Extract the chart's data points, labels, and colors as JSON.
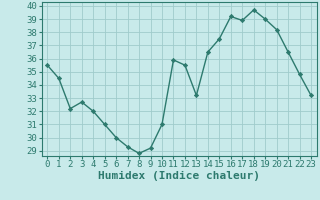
{
  "x": [
    0,
    1,
    2,
    3,
    4,
    5,
    6,
    7,
    8,
    9,
    10,
    11,
    12,
    13,
    14,
    15,
    16,
    17,
    18,
    19,
    20,
    21,
    22,
    23
  ],
  "y": [
    35.5,
    34.5,
    32.2,
    32.7,
    32.0,
    31.0,
    30.0,
    29.3,
    28.8,
    29.2,
    31.0,
    35.9,
    35.5,
    33.2,
    36.5,
    37.5,
    39.2,
    38.9,
    39.7,
    39.0,
    38.2,
    36.5,
    34.8,
    33.2
  ],
  "line_color": "#2d7a6e",
  "marker": "D",
  "marker_size": 2.2,
  "bg_color": "#c8eaea",
  "grid_color": "#a0cccc",
  "xlabel": "Humidex (Indice chaleur)",
  "ylim_min": 28.6,
  "ylim_max": 40.3,
  "xlim_min": -0.5,
  "xlim_max": 23.5,
  "yticks": [
    29,
    30,
    31,
    32,
    33,
    34,
    35,
    36,
    37,
    38,
    39,
    40
  ],
  "xticks": [
    0,
    1,
    2,
    3,
    4,
    5,
    6,
    7,
    8,
    9,
    10,
    11,
    12,
    13,
    14,
    15,
    16,
    17,
    18,
    19,
    20,
    21,
    22,
    23
  ],
  "tick_label_fontsize": 6.5,
  "xlabel_fontsize": 8,
  "tick_color": "#2d7a6e",
  "spine_color": "#2d7a6e",
  "linewidth": 1.0
}
